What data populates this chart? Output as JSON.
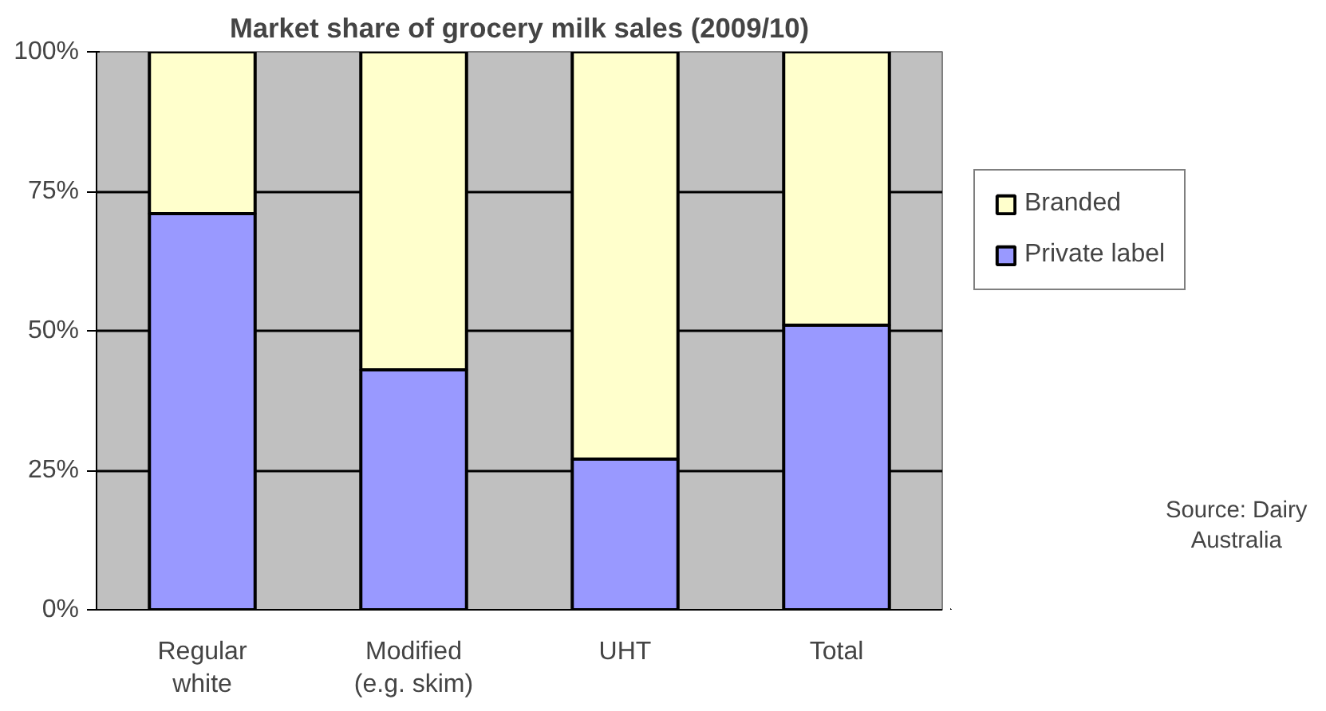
{
  "chart_data": {
    "type": "bar",
    "title": "Market share of grocery milk sales (2009/10)",
    "categories": [
      "Regular white",
      "Modified (e.g. skim)",
      "UHT",
      "Total"
    ],
    "stacked": true,
    "series": [
      {
        "name": "Private label",
        "color": "#9999ff",
        "values": [
          71,
          43,
          27,
          51
        ]
      },
      {
        "name": "Branded",
        "color": "#ffffcc",
        "values": [
          29,
          57,
          73,
          49
        ]
      }
    ],
    "ylim": [
      0,
      100
    ],
    "yticks": [
      {
        "value": 0,
        "label": "0%"
      },
      {
        "value": 25,
        "label": "25%"
      },
      {
        "value": 50,
        "label": "50%"
      },
      {
        "value": 75,
        "label": "75%"
      },
      {
        "value": 100,
        "label": "100%"
      }
    ],
    "grid": "y",
    "legend": "right",
    "annotations": [
      "Source: Dairy Australia"
    ]
  }
}
